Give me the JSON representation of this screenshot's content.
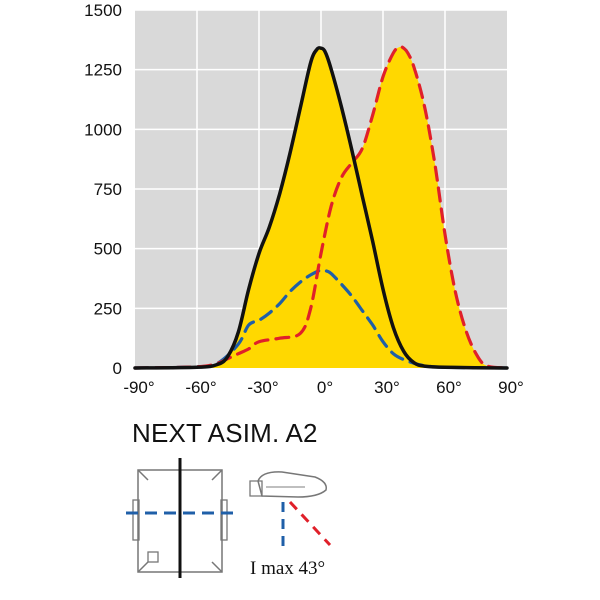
{
  "chart_data": {
    "type": "line",
    "x_unit": "°",
    "xlim": [
      -90,
      90
    ],
    "ylim": [
      0,
      1500
    ],
    "x_ticks": [
      -90,
      -60,
      -30,
      0,
      30,
      60,
      90
    ],
    "x_tick_labels": [
      "-90°",
      "-60°",
      "-30°",
      "0°",
      "30°",
      "60°",
      "90°"
    ],
    "y_ticks": [
      0,
      250,
      500,
      750,
      1000,
      1250,
      1500
    ],
    "y_tick_labels": [
      "0",
      "250",
      "500",
      "750",
      "1000",
      "1250",
      "1500"
    ],
    "grid": true,
    "colors": {
      "plot_bg": "#d9d9d9",
      "grid": "#ffffff",
      "fill": "#ffd800",
      "black": "#111111",
      "red": "#e0202a",
      "blue": "#1f5fa8"
    },
    "series": [
      {
        "style": "solid",
        "color": "#111111",
        "filled": true,
        "x": [
          -90,
          -60,
          -50,
          -45,
          -40,
          -35,
          -30,
          -25,
          -20,
          -15,
          -10,
          -5,
          -2,
          0,
          2,
          5,
          10,
          15,
          20,
          25,
          30,
          35,
          40,
          45,
          50,
          60,
          90
        ],
        "values": [
          0,
          3,
          15,
          50,
          150,
          330,
          480,
          590,
          730,
          900,
          1090,
          1280,
          1335,
          1340,
          1325,
          1250,
          1090,
          910,
          720,
          530,
          330,
          170,
          70,
          22,
          8,
          3,
          0
        ]
      },
      {
        "style": "dashed",
        "color": "#e0202a",
        "filled": true,
        "x": [
          -90,
          -60,
          -50,
          -45,
          -40,
          -35,
          -30,
          -20,
          -10,
          -5,
          0,
          5,
          10,
          15,
          20,
          25,
          30,
          35,
          38,
          40,
          42,
          45,
          50,
          55,
          60,
          65,
          70,
          75,
          80,
          90
        ],
        "values": [
          0,
          5,
          20,
          40,
          60,
          80,
          110,
          125,
          145,
          250,
          480,
          680,
          800,
          860,
          920,
          1060,
          1220,
          1320,
          1345,
          1340,
          1320,
          1260,
          1100,
          860,
          560,
          320,
          160,
          60,
          10,
          0
        ]
      },
      {
        "style": "dashed",
        "color": "#1f5fa8",
        "filled": false,
        "x": [
          -90,
          -60,
          -50,
          -40,
          -35,
          -30,
          -25,
          -20,
          -15,
          -10,
          -5,
          0,
          3,
          5,
          10,
          15,
          20,
          25,
          30,
          35,
          40,
          45,
          50,
          60,
          90
        ],
        "values": [
          0,
          5,
          20,
          100,
          180,
          200,
          230,
          270,
          320,
          360,
          390,
          410,
          405,
          395,
          350,
          300,
          240,
          180,
          110,
          60,
          35,
          20,
          10,
          3,
          0
        ]
      }
    ]
  },
  "product_name": "NEXT ASIM. A2",
  "imax_label": "I max 43°"
}
